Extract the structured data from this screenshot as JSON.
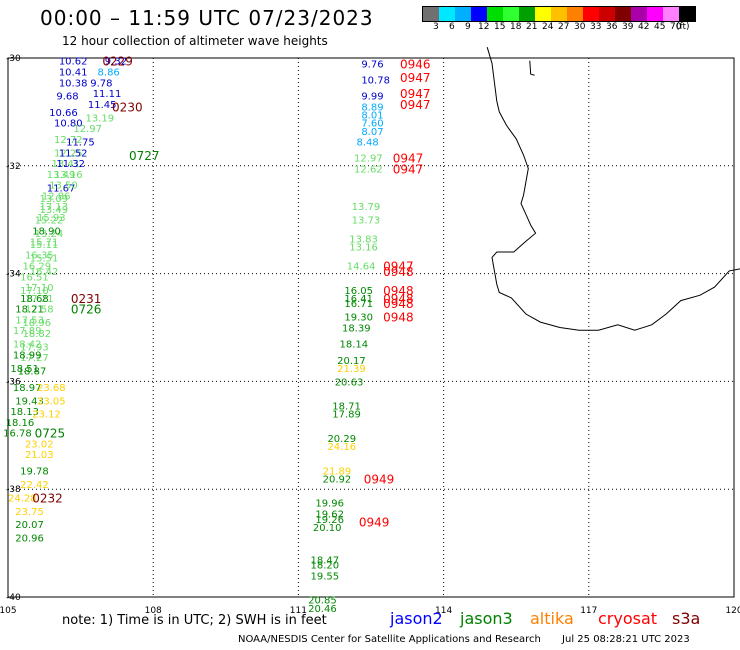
{
  "header": {
    "title": "00:00 – 11:59 UTC 07/23/2023",
    "subtitle": "12 hour collection of altimeter wave heights"
  },
  "legend": {
    "colors": [
      "#707070",
      "#00e8ff",
      "#00b0ff",
      "#0000ff",
      "#00dd00",
      "#30ff30",
      "#00a000",
      "#ffff00",
      "#ffc000",
      "#ff8000",
      "#ff0000",
      "#cc0000",
      "#800000",
      "#aa00aa",
      "#ff00ff",
      "#ff80ff",
      "#000000"
    ],
    "labels": [
      "3",
      "6",
      "9",
      "12",
      "15",
      "18",
      "21",
      "24",
      "27",
      "30",
      "33",
      "36",
      "39",
      "42",
      "45",
      "70",
      "(ft)"
    ],
    "label_positions": [
      "3",
      "6",
      "9",
      "12",
      "15",
      "18",
      "21",
      "24",
      "27",
      "30",
      "33",
      "36",
      "39",
      "42",
      "45",
      "70",
      "(ft)"
    ]
  },
  "map": {
    "lon_ticks": [
      "105",
      "108",
      "111",
      "114",
      "117",
      "120"
    ],
    "lat_ticks": [
      "-30",
      "-32",
      "-34",
      "-36",
      "-38",
      "-40"
    ],
    "lon_range": [
      105,
      120
    ],
    "lat_range": [
      -30,
      -40
    ],
    "grid": true,
    "colors": {
      "time_red": "#ff0000",
      "time_dark": "#800000",
      "time_green": "#008000"
    },
    "observations": [
      {
        "lon": 106.05,
        "lat": -30.05,
        "label": "10.62",
        "color": "#0000cc"
      },
      {
        "lon": 106.05,
        "lat": -30.25,
        "label": "10.41",
        "color": "#0000cc"
      },
      {
        "lon": 106.05,
        "lat": -30.45,
        "label": "10.38",
        "color": "#0000cc"
      },
      {
        "lon": 106.0,
        "lat": -30.7,
        "label": "9.68",
        "color": "#0000cc"
      },
      {
        "lon": 105.85,
        "lat": -31.0,
        "label": "10.66",
        "color": "#0000cc"
      },
      {
        "lon": 105.95,
        "lat": -31.2,
        "label": "10.80",
        "color": "#0000cc"
      },
      {
        "lon": 105.95,
        "lat": -31.5,
        "label": "12.72",
        "color": "#66dd66"
      },
      {
        "lon": 105.95,
        "lat": -31.75,
        "label": "12.25",
        "color": "#66dd66"
      },
      {
        "lon": 105.9,
        "lat": -31.95,
        "label": "13.41",
        "color": "#66dd66"
      },
      {
        "lon": 105.8,
        "lat": -32.15,
        "label": "13.49",
        "color": "#66dd66"
      },
      {
        "lon": 105.8,
        "lat": -32.4,
        "label": "11.67",
        "color": "#0000cc"
      },
      {
        "lon": 105.65,
        "lat": -32.6,
        "label": "13.09",
        "color": "#66dd66"
      },
      {
        "lon": 105.65,
        "lat": -32.8,
        "label": "13.49",
        "color": "#66dd66"
      },
      {
        "lon": 105.55,
        "lat": -33.0,
        "label": "15.22",
        "color": "#66dd66"
      },
      {
        "lon": 105.55,
        "lat": -33.25,
        "label": "13.24",
        "color": "#66dd66"
      },
      {
        "lon": 105.45,
        "lat": -33.45,
        "label": "15.11",
        "color": "#66dd66"
      },
      {
        "lon": 105.45,
        "lat": -33.7,
        "label": "15.51",
        "color": "#66dd66"
      },
      {
        "lon": 105.45,
        "lat": -33.95,
        "label": "16.42",
        "color": "#66dd66"
      },
      {
        "lon": 105.35,
        "lat": -34.25,
        "label": "17.10",
        "color": "#66dd66"
      },
      {
        "lon": 105.35,
        "lat": -34.45,
        "label": "17.21",
        "color": "#66dd66"
      },
      {
        "lon": 105.35,
        "lat": -34.65,
        "label": "17.58",
        "color": "#66dd66"
      },
      {
        "lon": 105.3,
        "lat": -34.9,
        "label": "18.96",
        "color": "#66dd66"
      },
      {
        "lon": 105.3,
        "lat": -35.1,
        "label": "18.82",
        "color": "#66dd66"
      },
      {
        "lon": 105.25,
        "lat": -35.35,
        "label": "17.93",
        "color": "#66dd66"
      },
      {
        "lon": 105.25,
        "lat": -35.55,
        "label": "17.27",
        "color": "#66dd66"
      },
      {
        "lon": 105.2,
        "lat": -35.8,
        "label": "18.87",
        "color": "#008800"
      },
      {
        "lon": 105.1,
        "lat": -36.1,
        "label": "18.97",
        "color": "#008800"
      },
      {
        "lon": 105.15,
        "lat": -36.35,
        "label": "19.43",
        "color": "#008800"
      },
      {
        "lon": 105.05,
        "lat": -36.55,
        "label": "18.13",
        "color": "#008800"
      },
      {
        "lon": 104.95,
        "lat": -36.75,
        "label": "18.16",
        "color": "#008800"
      },
      {
        "lon": 104.9,
        "lat": -36.95,
        "label": "16.78",
        "color": "#008800"
      },
      {
        "lon": 105.35,
        "lat": -37.15,
        "label": "23.02",
        "color": "#ffd000"
      },
      {
        "lon": 105.35,
        "lat": -37.35,
        "label": "21.03",
        "color": "#ffd000"
      },
      {
        "lon": 105.25,
        "lat": -37.65,
        "label": "19.78",
        "color": "#008800"
      },
      {
        "lon": 105.25,
        "lat": -37.9,
        "label": "22.42",
        "color": "#ffd000"
      },
      {
        "lon": 105.0,
        "lat": -38.15,
        "label": "24.28",
        "color": "#ffd000"
      },
      {
        "lon": 105.15,
        "lat": -38.4,
        "label": "23.75",
        "color": "#ffd000"
      },
      {
        "lon": 105.15,
        "lat": -38.65,
        "label": "20.07",
        "color": "#008800"
      },
      {
        "lon": 105.15,
        "lat": -38.9,
        "label": "20.96",
        "color": "#008800"
      },
      {
        "lon": 107.0,
        "lat": -30.05,
        "label": "9.32",
        "color": "#0000cc"
      },
      {
        "lon": 106.85,
        "lat": -30.25,
        "label": "8.86",
        "color": "#00aaff"
      },
      {
        "lon": 106.7,
        "lat": -30.45,
        "label": "9.78",
        "color": "#0000cc"
      },
      {
        "lon": 106.75,
        "lat": -30.65,
        "label": "11.11",
        "color": "#0000cc"
      },
      {
        "lon": 106.65,
        "lat": -30.85,
        "label": "11.45",
        "color": "#0000cc"
      },
      {
        "lon": 106.6,
        "lat": -31.1,
        "label": "13.19",
        "color": "#66dd66"
      },
      {
        "lon": 106.35,
        "lat": -31.3,
        "label": "12.97",
        "color": "#66dd66"
      },
      {
        "lon": 106.2,
        "lat": -31.55,
        "label": "11.75",
        "color": "#0000cc"
      },
      {
        "lon": 106.05,
        "lat": -31.75,
        "label": "11.52",
        "color": "#0000cc"
      },
      {
        "lon": 106.0,
        "lat": -31.95,
        "label": "11.32",
        "color": "#0000cc"
      },
      {
        "lon": 105.95,
        "lat": -32.15,
        "label": "13.16",
        "color": "#66dd66"
      },
      {
        "lon": 105.85,
        "lat": -32.35,
        "label": "13.50",
        "color": "#66dd66"
      },
      {
        "lon": 105.7,
        "lat": -32.55,
        "label": "12.86",
        "color": "#66dd66"
      },
      {
        "lon": 105.65,
        "lat": -32.75,
        "label": "17.13",
        "color": "#66dd66"
      },
      {
        "lon": 105.6,
        "lat": -32.95,
        "label": "15.93",
        "color": "#66dd66"
      },
      {
        "lon": 105.5,
        "lat": -33.2,
        "label": "18.90",
        "color": "#008800"
      },
      {
        "lon": 105.45,
        "lat": -33.4,
        "label": "15.71",
        "color": "#66dd66"
      },
      {
        "lon": 105.35,
        "lat": -33.65,
        "label": "16.35",
        "color": "#66dd66"
      },
      {
        "lon": 105.3,
        "lat": -33.85,
        "label": "16.29",
        "color": "#66dd66"
      },
      {
        "lon": 105.25,
        "lat": -34.05,
        "label": "16.51",
        "color": "#66dd66"
      },
      {
        "lon": 105.25,
        "lat": -34.3,
        "label": "17.10",
        "color": "#66dd66"
      },
      {
        "lon": 105.25,
        "lat": -34.45,
        "label": "18.68",
        "color": "#008800"
      },
      {
        "lon": 105.15,
        "lat": -34.65,
        "label": "18.21",
        "color": "#008800"
      },
      {
        "lon": 105.15,
        "lat": -34.85,
        "label": "17.53",
        "color": "#66dd66"
      },
      {
        "lon": 105.1,
        "lat": -35.05,
        "label": "17.89",
        "color": "#66dd66"
      },
      {
        "lon": 105.1,
        "lat": -35.3,
        "label": "18.42",
        "color": "#66dd66"
      },
      {
        "lon": 105.1,
        "lat": -35.5,
        "label": "18.99",
        "color": "#008800"
      },
      {
        "lon": 105.05,
        "lat": -35.75,
        "label": "18.51",
        "color": "#008800"
      },
      {
        "lon": 105.6,
        "lat": -36.1,
        "label": "23.68",
        "color": "#ffd000"
      },
      {
        "lon": 105.6,
        "lat": -36.35,
        "label": "23.05",
        "color": "#ffd000"
      },
      {
        "lon": 105.5,
        "lat": -36.6,
        "label": "23.12",
        "color": "#ffd000"
      },
      {
        "lon": 112.3,
        "lat": -30.1,
        "label": "9.76",
        "color": "#0000cc"
      },
      {
        "lon": 112.3,
        "lat": -30.4,
        "label": "10.78",
        "color": "#0000cc"
      },
      {
        "lon": 112.3,
        "lat": -30.7,
        "label": "9.99",
        "color": "#0000cc"
      },
      {
        "lon": 112.3,
        "lat": -30.9,
        "label": "8.89",
        "color": "#00aaff"
      },
      {
        "lon": 112.3,
        "lat": -31.05,
        "label": "8.01",
        "color": "#00aaff"
      },
      {
        "lon": 112.3,
        "lat": -31.2,
        "label": "7.60",
        "color": "#00aaff"
      },
      {
        "lon": 112.3,
        "lat": -31.35,
        "label": "8.07",
        "color": "#00aaff"
      },
      {
        "lon": 112.2,
        "lat": -31.55,
        "label": "8.48",
        "color": "#00aaff"
      },
      {
        "lon": 112.15,
        "lat": -31.85,
        "label": "12.97",
        "color": "#66dd66"
      },
      {
        "lon": 112.15,
        "lat": -32.05,
        "label": "12.62",
        "color": "#66dd66"
      },
      {
        "lon": 112.1,
        "lat": -32.75,
        "label": "13.79",
        "color": "#66dd66"
      },
      {
        "lon": 112.1,
        "lat": -33.0,
        "label": "13.73",
        "color": "#66dd66"
      },
      {
        "lon": 112.05,
        "lat": -33.35,
        "label": "13.83",
        "color": "#66dd66"
      },
      {
        "lon": 112.05,
        "lat": -33.5,
        "label": "13.16",
        "color": "#66dd66"
      },
      {
        "lon": 112.0,
        "lat": -33.85,
        "label": "14.64",
        "color": "#66dd66"
      },
      {
        "lon": 111.95,
        "lat": -34.3,
        "label": "16.05",
        "color": "#008800"
      },
      {
        "lon": 111.95,
        "lat": -34.45,
        "label": "16.41",
        "color": "#008800"
      },
      {
        "lon": 111.95,
        "lat": -34.55,
        "label": "16.71",
        "color": "#008800"
      },
      {
        "lon": 111.95,
        "lat": -34.8,
        "label": "19.30",
        "color": "#008800"
      },
      {
        "lon": 111.9,
        "lat": -35.0,
        "label": "18.39",
        "color": "#008800"
      },
      {
        "lon": 111.85,
        "lat": -35.3,
        "label": "18.14",
        "color": "#008800"
      },
      {
        "lon": 111.8,
        "lat": -35.6,
        "label": "20.17",
        "color": "#008800"
      },
      {
        "lon": 111.8,
        "lat": -35.75,
        "label": "21.39",
        "color": "#ffd000"
      },
      {
        "lon": 111.75,
        "lat": -36.0,
        "label": "20.63",
        "color": "#008800"
      },
      {
        "lon": 111.7,
        "lat": -36.45,
        "label": "18.71",
        "color": "#008800"
      },
      {
        "lon": 111.7,
        "lat": -36.6,
        "label": "17.89",
        "color": "#008800"
      },
      {
        "lon": 111.6,
        "lat": -37.05,
        "label": "20.29",
        "color": "#008800"
      },
      {
        "lon": 111.6,
        "lat": -37.2,
        "label": "24.16",
        "color": "#ffd000"
      },
      {
        "lon": 111.5,
        "lat": -37.65,
        "label": "21.89",
        "color": "#ffd000"
      },
      {
        "lon": 111.5,
        "lat": -37.8,
        "label": "20.92",
        "color": "#008800"
      },
      {
        "lon": 111.35,
        "lat": -38.25,
        "label": "19.96",
        "color": "#008800"
      },
      {
        "lon": 111.35,
        "lat": -38.45,
        "label": "19.62",
        "color": "#008800"
      },
      {
        "lon": 111.35,
        "lat": -38.55,
        "label": "19.26",
        "color": "#008800"
      },
      {
        "lon": 111.3,
        "lat": -38.7,
        "label": "20.10",
        "color": "#008800"
      },
      {
        "lon": 111.25,
        "lat": -39.3,
        "label": "18.47",
        "color": "#008800"
      },
      {
        "lon": 111.25,
        "lat": -39.4,
        "label": "18.20",
        "color": "#008800"
      },
      {
        "lon": 111.25,
        "lat": -39.6,
        "label": "19.55",
        "color": "#008800"
      },
      {
        "lon": 111.2,
        "lat": -40.05,
        "label": "20.85",
        "color": "#008800"
      },
      {
        "lon": 111.2,
        "lat": -40.2,
        "label": "20.46",
        "color": "#008800"
      }
    ],
    "time_stamps": [
      {
        "lon": 106.95,
        "lat": -30.05,
        "label": "0229",
        "color": "#800000"
      },
      {
        "lon": 107.15,
        "lat": -30.9,
        "label": "0230",
        "color": "#800000"
      },
      {
        "lon": 107.5,
        "lat": -31.8,
        "label": "0727",
        "color": "#008000"
      },
      {
        "lon": 106.3,
        "lat": -34.45,
        "label": "0231",
        "color": "#800000"
      },
      {
        "lon": 106.3,
        "lat": -34.65,
        "label": "0726",
        "color": "#008000"
      },
      {
        "lon": 105.55,
        "lat": -36.95,
        "label": "0725",
        "color": "#008000"
      },
      {
        "lon": 105.5,
        "lat": -38.15,
        "label": "0232",
        "color": "#800000"
      },
      {
        "lon": 113.1,
        "lat": -30.1,
        "label": "0946",
        "color": "#ff0000"
      },
      {
        "lon": 113.1,
        "lat": -30.35,
        "label": "0947",
        "color": "#ff0000"
      },
      {
        "lon": 113.1,
        "lat": -30.65,
        "label": "0947",
        "color": "#ff0000"
      },
      {
        "lon": 113.1,
        "lat": -30.85,
        "label": "0947",
        "color": "#ff0000"
      },
      {
        "lon": 112.95,
        "lat": -31.85,
        "label": "0947",
        "color": "#ff0000"
      },
      {
        "lon": 112.95,
        "lat": -32.05,
        "label": "0947",
        "color": "#ff0000"
      },
      {
        "lon": 112.75,
        "lat": -33.85,
        "label": "0947",
        "color": "#ff0000"
      },
      {
        "lon": 112.75,
        "lat": -33.95,
        "label": "0948",
        "color": "#ff0000"
      },
      {
        "lon": 112.75,
        "lat": -34.3,
        "label": "0948",
        "color": "#ff0000"
      },
      {
        "lon": 112.75,
        "lat": -34.45,
        "label": "0948",
        "color": "#ff0000"
      },
      {
        "lon": 112.75,
        "lat": -34.55,
        "label": "0948",
        "color": "#ff0000"
      },
      {
        "lon": 112.75,
        "lat": -34.8,
        "label": "0948",
        "color": "#ff0000"
      },
      {
        "lon": 112.35,
        "lat": -37.8,
        "label": "0949",
        "color": "#ff0000"
      },
      {
        "lon": 112.25,
        "lat": -38.6,
        "label": "0949",
        "color": "#ff0000"
      }
    ]
  },
  "footer": {
    "note": "note: 1) Time is in UTC; 2) SWH is in feet",
    "satellites": [
      {
        "name": "jason2",
        "color": "#0000ff"
      },
      {
        "name": "jason3",
        "color": "#008000"
      },
      {
        "name": "altika",
        "color": "#ff8000"
      },
      {
        "name": "cryosat",
        "color": "#ff0000"
      },
      {
        "name": "s3a",
        "color": "#800000"
      }
    ],
    "credit": "NOAA/NESDIS Center for Satellite Applications and Research",
    "timestamp": "Jul 25 08:28:21 UTC 2023"
  }
}
